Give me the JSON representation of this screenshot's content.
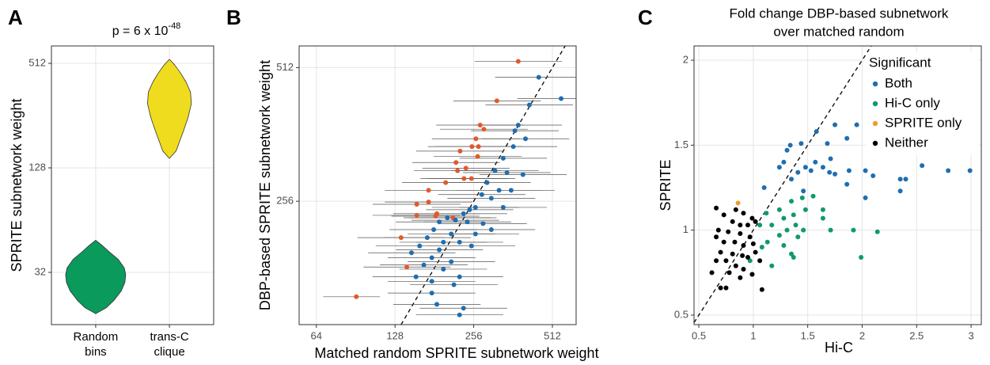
{
  "chart_data": [
    {
      "type": "violin",
      "panel_label": "A",
      "title": "p = 6 x 10",
      "title_superscript": "-48",
      "ylabel": "SPRITE subnetwork weight",
      "log_scale": true,
      "categories": [
        [
          "Random",
          "bins"
        ],
        [
          "trans-C",
          "clique"
        ]
      ],
      "series": [
        {
          "color": "#0a9a5c",
          "y": [
            18.5,
            20,
            22,
            25,
            28,
            31,
            34,
            38,
            42,
            46,
            49
          ],
          "density": [
            0,
            0.35,
            0.6,
            0.85,
            0.97,
            1.0,
            0.95,
            0.75,
            0.45,
            0.2,
            0
          ]
        },
        {
          "color": "#f0dc1e",
          "y": [
            145,
            160,
            180,
            210,
            250,
            300,
            350,
            400,
            450,
            500,
            540
          ],
          "density": [
            0,
            0.22,
            0.33,
            0.47,
            0.62,
            0.73,
            0.7,
            0.55,
            0.37,
            0.18,
            0
          ]
        }
      ],
      "ylim": [
        16,
        645
      ],
      "yticks": [
        32,
        128,
        512
      ],
      "grid": true
    },
    {
      "type": "scatter",
      "panel_label": "B",
      "xlabel": "Matched random SPRITE subnetwork weight",
      "ylabel": "DBP-based SPRITE subnetwork weight",
      "log_scale": true,
      "diagonal": true,
      "series": [
        {
          "color": "#e05a2b",
          "x": [
            379,
            314,
            271,
            280,
            261,
            267,
            252,
            227,
            265,
            219,
            239,
            222,
            235,
            251,
            200,
            172,
            172,
            155,
            185,
            183,
            155,
            213,
            135,
            142,
            91
          ],
          "values": [
            529,
            431,
            380,
            372,
            354,
            340,
            340,
            332,
            323,
            313,
            304,
            300,
            288,
            288,
            282,
            271,
            255,
            252,
            240,
            237,
            238,
            235,
            212,
            182,
            156
          ],
          "xmin": [
            258,
            214,
            184,
            190,
            177,
            182,
            171,
            154,
            180,
            149,
            163,
            151,
            160,
            171,
            136,
            117,
            117,
            105,
            126,
            124,
            105,
            145,
            92,
            97,
            68
          ],
          "xmax": [
            557,
            462,
            398,
            412,
            384,
            392,
            370,
            334,
            390,
            322,
            351,
            326,
            345,
            369,
            294,
            253,
            253,
            228,
            272,
            269,
            228,
            313,
            198,
            209,
            112
          ]
        },
        {
          "color": "#1f6eb0",
          "x": [
            454,
            553,
            418,
            379,
            368,
            404,
            363,
            332,
            343,
            309,
            395,
            288,
            320,
            356,
            275,
            260,
            247,
            234,
            299,
            218,
            203,
            189,
            242,
            278,
            180,
            210,
            260,
            170,
            196,
            226,
            159,
            189,
            251,
            148,
            177,
            210,
            165,
            196,
            154,
            226,
            177,
            215,
            177,
            185,
            234,
            226,
            299,
            332
          ],
          "values": [
            487,
            436,
            422,
            380,
            369,
            354,
            340,
            320,
            297,
            300,
            294,
            282,
            271,
            271,
            265,
            248,
            245,
            240,
            260,
            232,
            235,
            230,
            230,
            228,
            221,
            216,
            216,
            212,
            207,
            207,
            203,
            199,
            203,
            196,
            191,
            187,
            184,
            180,
            173,
            173,
            169,
            166,
            159,
            150,
            147,
            142,
            221,
            248
          ],
          "xmin": [
            309,
            376,
            284,
            258,
            250,
            275,
            247,
            226,
            233,
            210,
            269,
            196,
            218,
            242,
            187,
            177,
            168,
            159,
            203,
            148,
            138,
            129,
            165,
            189,
            122,
            143,
            177,
            116,
            133,
            154,
            108,
            129,
            171,
            101,
            120,
            143,
            112,
            133,
            105,
            154,
            120,
            146,
            120,
            126,
            159,
            154,
            203,
            226
          ],
          "xmax": [
            667,
            813,
            614,
            557,
            541,
            594,
            534,
            488,
            504,
            454,
            581,
            423,
            470,
            523,
            404,
            382,
            363,
            344,
            440,
            320,
            298,
            278,
            356,
            409,
            265,
            309,
            382,
            250,
            288,
            332,
            234,
            278,
            369,
            218,
            260,
            309,
            243,
            288,
            226,
            332,
            260,
            316,
            260,
            272,
            344,
            332,
            440,
            488
          ]
        }
      ],
      "xlim": [
        55,
        631
      ],
      "xticks": [
        64,
        128,
        256,
        512
      ],
      "ylim": [
        135,
        573
      ],
      "yticks": [
        256,
        512
      ],
      "grid": true
    },
    {
      "type": "scatter",
      "panel_label": "C",
      "title": [
        "Fold change DBP-based subnetwork",
        "over matched random"
      ],
      "xlabel": "Hi-C",
      "ylabel": "SPRITE",
      "diagonal": true,
      "legend_title": "Significant",
      "legend": "top-right",
      "series": [
        {
          "name": "Both",
          "color": "#1f6eb0",
          "x": [
            1.75,
            1.95,
            1.58,
            1.86,
            1.34,
            1.44,
            1.31,
            1.68,
            1.24,
            1.28,
            1.48,
            1.57,
            1.64,
            1.71,
            1.53,
            1.35,
            1.41,
            1.7,
            1.75,
            1.86,
            2.03,
            2.1,
            2.35,
            2.4,
            2.35,
            2.55,
            2.79,
            2.99,
            1.88,
            1.1,
            1.46,
            2.03
          ],
          "values": [
            1.62,
            1.62,
            1.58,
            1.54,
            1.5,
            1.51,
            1.47,
            1.51,
            1.37,
            1.4,
            1.37,
            1.4,
            1.37,
            1.42,
            1.35,
            1.3,
            1.34,
            1.34,
            1.33,
            1.27,
            1.35,
            1.32,
            1.3,
            1.3,
            1.23,
            1.38,
            1.35,
            1.35,
            1.35,
            1.25,
            1.23,
            1.19
          ]
        },
        {
          "name": "Hi-C only",
          "color": "#0f9a6a",
          "x": [
            1.45,
            1.35,
            1.55,
            1.24,
            1.12,
            1.28,
            1.37,
            1.48,
            1.64,
            1.64,
            1.06,
            1.17,
            1.31,
            1.39,
            1.46,
            1.71,
            1.41,
            1.24,
            1.13,
            1.08,
            1.28,
            1.37,
            0.97,
            0.99,
            1.17,
            1.92,
            2.14,
            1.99,
            1.35
          ],
          "values": [
            1.19,
            1.17,
            1.2,
            1.12,
            1.1,
            1.07,
            1.09,
            1.12,
            1.12,
            1.07,
            1.03,
            1.03,
            1.0,
            1.03,
            1.0,
            1.0,
            0.96,
            0.97,
            0.93,
            0.9,
            0.91,
            0.84,
            0.82,
            0.74,
            0.79,
            1.0,
            0.99,
            0.84,
            0.86
          ]
        },
        {
          "name": "SPRITE only",
          "color": "#f29a2e",
          "x": [
            0.86
          ],
          "values": [
            1.16
          ]
        },
        {
          "name": "Neither",
          "color": "#000000",
          "x": [
            0.66,
            0.84,
            0.91,
            0.99,
            0.73,
            0.81,
            0.88,
            0.95,
            1.02,
            0.68,
            0.77,
            0.88,
            0.97,
            0.66,
            0.73,
            0.83,
            0.91,
            1.0,
            0.7,
            0.81,
            0.9,
            0.95,
            0.75,
            0.84,
            0.66,
            0.91,
            0.78,
            0.88,
            0.99,
            1.06,
            0.7,
            0.75,
            1.08,
            0.62,
            1.02
          ],
          "values": [
            1.13,
            1.12,
            1.1,
            1.07,
            1.09,
            1.05,
            1.03,
            1.03,
            1.05,
            1.0,
            0.99,
            0.98,
            0.96,
            0.96,
            0.93,
            0.93,
            0.91,
            0.92,
            0.87,
            0.86,
            0.85,
            0.84,
            0.82,
            0.79,
            0.82,
            0.77,
            0.75,
            0.72,
            0.74,
            0.82,
            0.66,
            0.66,
            0.65,
            0.75,
            0.87
          ]
        }
      ],
      "xlim": [
        0.456,
        3.094
      ],
      "xticks": [
        0.5,
        1,
        1.5,
        2,
        2.5,
        3
      ],
      "ylim": [
        0.444,
        2.084
      ],
      "yticks": [
        0.5,
        1,
        1.5,
        2
      ],
      "grid": true
    }
  ]
}
